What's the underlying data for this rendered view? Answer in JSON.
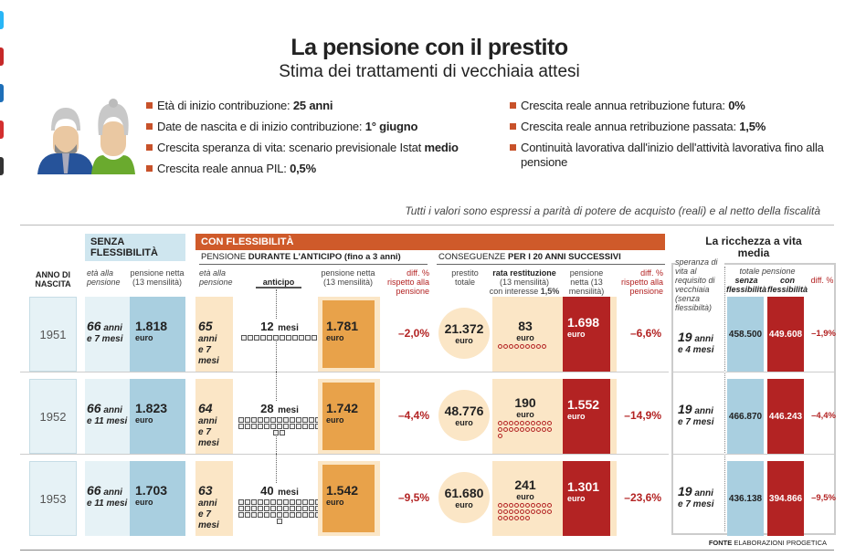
{
  "social_colors": [
    "#29b6f6",
    "#c62828",
    "#1e6fb8",
    "#d32f2f",
    "#333333"
  ],
  "title": "La pensione con il prestito",
  "subtitle": "Stima dei trattamenti di vecchiaia attesi",
  "assumptions_left": [
    {
      "label": "Età di inizio contribuzione: ",
      "value": "25 anni"
    },
    {
      "label": "Date de nascita e di inizio contribuzione: ",
      "value": "1° giugno"
    },
    {
      "label": "Crescita speranza di vita: scenario previsionale Istat ",
      "value": "medio"
    },
    {
      "label": "Crescita reale annua PIL: ",
      "value": "0,5%"
    }
  ],
  "assumptions_right": [
    {
      "label": "Crescita reale annua retribuzione futura: ",
      "value": "0%"
    },
    {
      "label": "Crescita reale annua retribuzione passata: ",
      "value": "1,5%"
    },
    {
      "label": "Continuità lavorativa dall'inizio dell'attività lavorativa fino alla pensione",
      "value": ""
    }
  ],
  "note": "Tutti i valori sono espressi a parità di potere de acquisto  (reali) e al netto della fiscalità",
  "headers": {
    "senza": "SENZA FLESSIBILITÀ",
    "con": "CON FLESSIBILITÀ",
    "durante_a": "PENSIONE ",
    "durante_b": "DURANTE L'ANTICIPO (fino a 3 anni)",
    "conseg_a": "CONSEGUENZE ",
    "conseg_b": "PER I 20 ANNI SUCCESSIVI",
    "anno": "ANNO DI NASCITA",
    "eta": "età alla pensione",
    "pens": "pensione netta (13 mensilità)",
    "anticipo": "anticipo",
    "diff": "diff. % rispetto alla pensione",
    "prestito": "prestito totale",
    "rata_a": "rata restituzione",
    "rata_b": "(13 mensilità)",
    "rata_c": "con interesse ",
    "rata_d": "1,5%",
    "ricchezza": "La ricchezza a vita media",
    "speranza": "speranza di vita al requisito di vecchiaia (senza flessibiltà)",
    "totale": "totale pensione",
    "senza2": "senza flessibilità",
    "con2": "con flessibilità",
    "diff2": "diff. %"
  },
  "rows": [
    {
      "anno": "1951",
      "eta_s_a": "66",
      "eta_s_b": "e 7 mesi",
      "pens_s": "1.818",
      "eta_c_a": "65",
      "eta_c_b": "e 7 mesi",
      "anticipo": "12",
      "pens_c": "1.781",
      "diff_c": "–2,0%",
      "prestito": "21.372",
      "rata": "83",
      "pens_post": "1.698",
      "diff_post": "–6,6%",
      "sper_a": "19",
      "sper_b": "e 4 mesi",
      "tot_s": "458.500",
      "tot_c": "449.608",
      "diff_tot": "–1,9%"
    },
    {
      "anno": "1952",
      "eta_s_a": "66",
      "eta_s_b": "e 11 mesi",
      "pens_s": "1.823",
      "eta_c_a": "64",
      "eta_c_b": "e 7 mesi",
      "anticipo": "28",
      "pens_c": "1.742",
      "diff_c": "–4,4%",
      "prestito": "48.776",
      "rata": "190",
      "pens_post": "1.552",
      "diff_post": "–14,9%",
      "sper_a": "19",
      "sper_b": "e 7 mesi",
      "tot_s": "466.870",
      "tot_c": "446.243",
      "diff_tot": "–4,4%"
    },
    {
      "anno": "1953",
      "eta_s_a": "66",
      "eta_s_b": "e 11 mesi",
      "pens_s": "1.703",
      "eta_c_a": "63",
      "eta_c_b": "e 7 mesi",
      "anticipo": "40",
      "pens_c": "1.542",
      "diff_c": "–9,5%",
      "prestito": "61.680",
      "rata": "241",
      "pens_post": "1.301",
      "diff_post": "–23,6%",
      "sper_a": "19",
      "sper_b": "e 7 mesi",
      "tot_s": "436.138",
      "tot_c": "394.866",
      "diff_tot": "–9,5%"
    }
  ],
  "units": {
    "anni": "anni",
    "mesi": "mesi",
    "euro": "euro"
  },
  "source_a": "FONTE ",
  "source_b": "ELABORAZIONI PROGETICA"
}
